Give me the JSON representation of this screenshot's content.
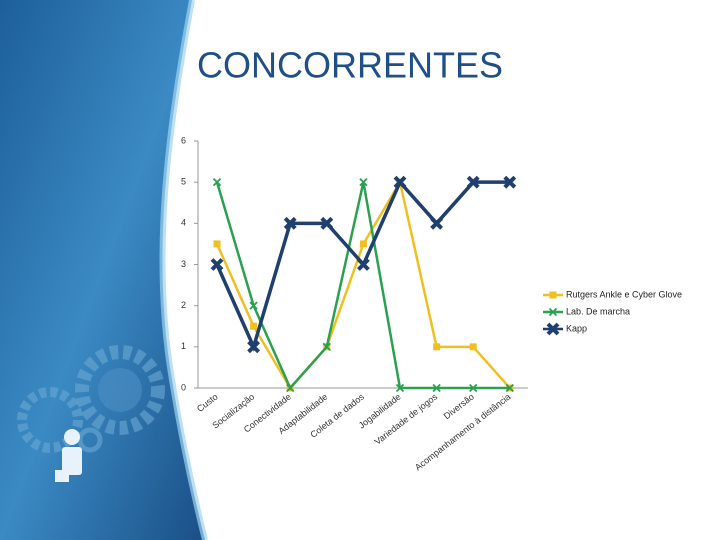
{
  "title": "CONCORRENTES",
  "chart_data": {
    "type": "line",
    "categories": [
      "Custo",
      "Socialização",
      "Conectividade",
      "Adaptabilidade",
      "Coleta de dados",
      "Jogabilidade",
      "Variedade de jogos",
      "Diversão",
      "Acompanhamento à distância"
    ],
    "series": [
      {
        "name": "Rutgers Ankle e Cyber Glove",
        "color": "#f0c020",
        "marker": "square",
        "values": [
          3.5,
          1.5,
          0,
          1,
          3.5,
          5,
          1,
          1,
          0
        ]
      },
      {
        "name": "Lab. De marcha",
        "color": "#2aa050",
        "marker": "cross",
        "values": [
          5,
          2,
          0,
          1,
          5,
          0,
          0,
          0,
          0
        ]
      },
      {
        "name": "Kapp",
        "color": "#1f3f6e",
        "marker": "bigx",
        "values": [
          3,
          1,
          4,
          4,
          3,
          5,
          4,
          5,
          5
        ]
      }
    ],
    "ylim": [
      0,
      6
    ],
    "yticks": [
      0,
      1,
      2,
      3,
      4,
      5,
      6
    ],
    "legend": "right"
  }
}
